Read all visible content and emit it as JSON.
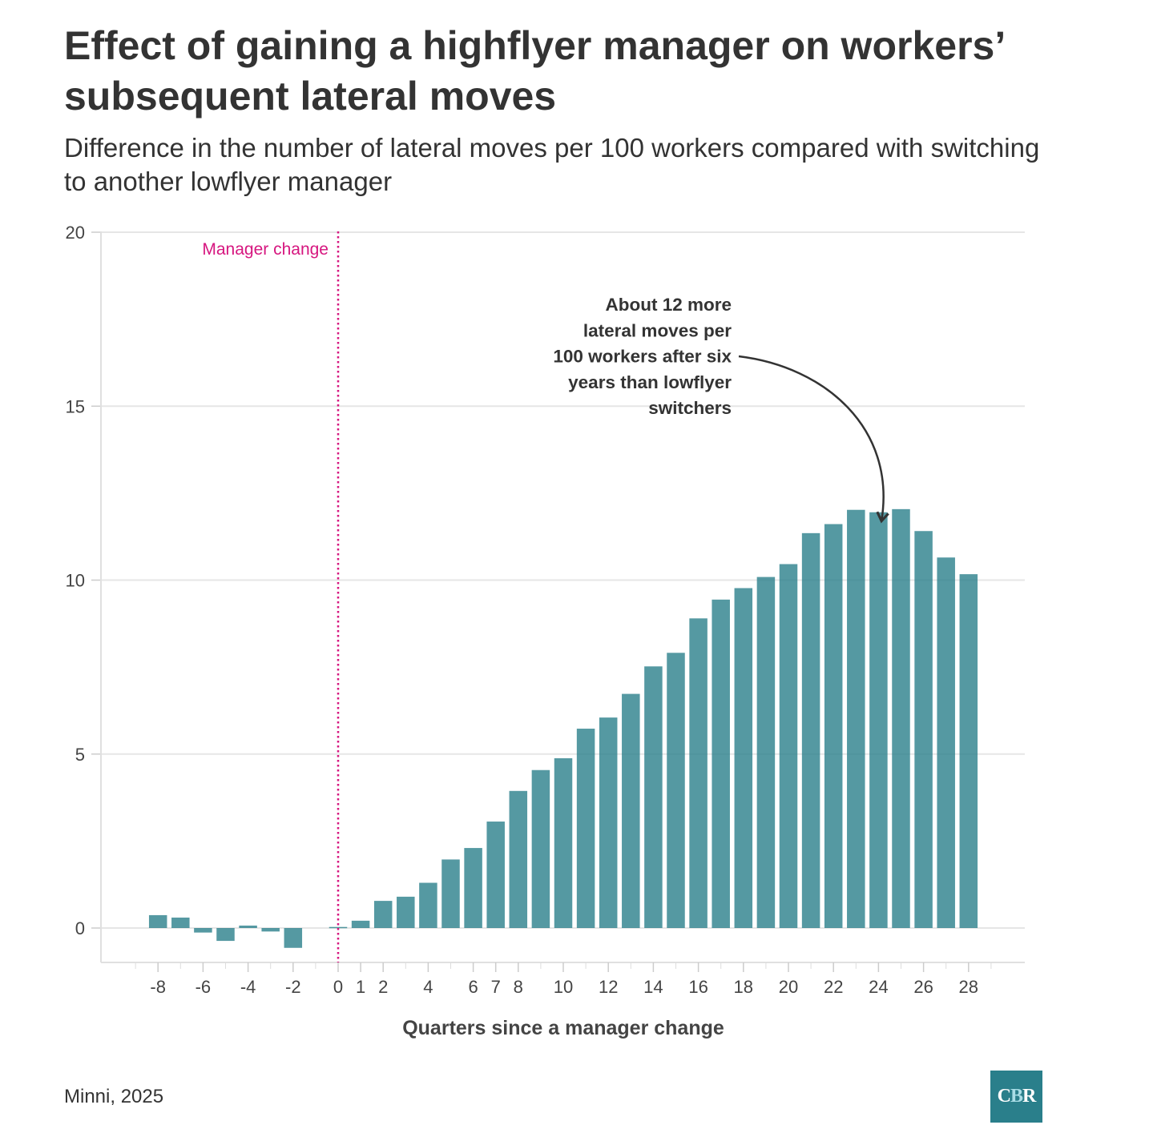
{
  "title": "Effect of gaining a highflyer manager on workers’ subsequent lateral moves",
  "subtitle": "Difference in the number of lateral moves per 100 workers compared with switching to another lowflyer manager",
  "source": "Minni, 2025",
  "logo": {
    "c": "C",
    "b": "B",
    "r": "R"
  },
  "chart_data": {
    "type": "bar",
    "xlabel": "Quarters since a manager change",
    "ylabel": "",
    "ylim": [
      -1,
      20
    ],
    "xlim": [
      -10.5,
      30.5
    ],
    "yticks": [
      0,
      5,
      10,
      15,
      20
    ],
    "xticks": [
      -8,
      -6,
      -4,
      -2,
      0,
      1,
      2,
      4,
      6,
      7,
      8,
      10,
      12,
      14,
      16,
      18,
      20,
      22,
      24,
      26,
      28
    ],
    "grid": true,
    "bar_color": "#2a7f8b",
    "x": [
      -8,
      -7,
      -6,
      -5,
      -4,
      -3,
      -2,
      0,
      1,
      2,
      3,
      4,
      5,
      6,
      7,
      8,
      9,
      10,
      11,
      12,
      13,
      14,
      15,
      16,
      17,
      18,
      19,
      20,
      21,
      22,
      23,
      24,
      25,
      26,
      27,
      28
    ],
    "values": [
      0.37,
      0.3,
      -0.13,
      -0.37,
      0.07,
      -0.1,
      -0.57,
      0.03,
      0.21,
      0.78,
      0.9,
      1.3,
      1.97,
      2.3,
      3.06,
      3.94,
      4.54,
      4.88,
      5.73,
      6.05,
      6.73,
      7.52,
      7.91,
      8.9,
      9.44,
      9.77,
      10.09,
      10.46,
      11.35,
      11.61,
      12.02,
      11.95,
      12.04,
      11.41,
      10.65,
      10.17
    ],
    "annotations": [
      {
        "type": "vline",
        "x": 0,
        "label": "Manager change",
        "color": "#d6167f"
      },
      {
        "type": "arrow",
        "text": "About 12 more lateral moves per 100 workers after six years than lowflyer switchers",
        "lines": [
          "About 12 more",
          "lateral moves per",
          "100 workers after six",
          "years than lowflyer",
          "switchers"
        ],
        "target_x": 24,
        "target_y": 11.6
      }
    ]
  }
}
